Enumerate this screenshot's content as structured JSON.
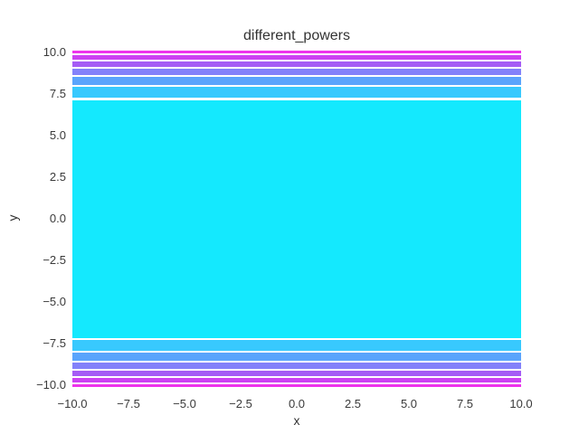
{
  "chart": {
    "title": "different_powers",
    "xlabel": "x",
    "ylabel": "y"
  },
  "colors": {
    "background": "#ffffff",
    "text": "#333333",
    "tick_text": "#3a3a3a"
  },
  "chart_data": {
    "type": "area",
    "title": "different_powers",
    "xlabel": "x",
    "ylabel": "y",
    "xlim": [
      -10.0,
      10.0
    ],
    "ylim": [
      -10.11,
      10.11
    ],
    "grid": false,
    "legend": false,
    "spines": false,
    "colormap": "cool",
    "description": "Horizontal color bands spanning the full x range [-10,10], symmetric about y=0; colors run from magenta at the outer edges through purple and blue to a large solid cyan block in the center.",
    "xticks": {
      "values": [
        -10.0,
        -7.5,
        -5.0,
        -2.5,
        0.0,
        2.5,
        5.0,
        7.5,
        10.0
      ],
      "labels": [
        "−10.0",
        "−7.5",
        "−5.0",
        "−2.5",
        "0.0",
        "2.5",
        "5.0",
        "7.5",
        "10.0"
      ]
    },
    "yticks": {
      "values": [
        10.0,
        7.5,
        5.0,
        2.5,
        0.0,
        -2.5,
        -5.0,
        -7.5,
        -10.0
      ],
      "labels": [
        "10.0",
        "7.5",
        "5.0",
        "2.5",
        "0.0",
        "−2.5",
        "−5.0",
        "−7.5",
        "−10.0"
      ]
    },
    "bands": [
      {
        "y_from": 9.95,
        "y_to": 10.11,
        "color": "#ee33ec"
      },
      {
        "y_from": 9.57,
        "y_to": 9.84,
        "color": "#cc41f2"
      },
      {
        "y_from": 9.13,
        "y_to": 9.46,
        "color": "#a55cf5"
      },
      {
        "y_from": 8.64,
        "y_to": 9.02,
        "color": "#8381fa"
      },
      {
        "y_from": 8.04,
        "y_to": 8.53,
        "color": "#5aa4fc"
      },
      {
        "y_from": 7.28,
        "y_to": 7.94,
        "color": "#38c9fe"
      },
      {
        "y_from": -7.17,
        "y_to": 7.12,
        "color": "#14e9fe"
      },
      {
        "y_from": -7.94,
        "y_to": -7.28,
        "color": "#38c9fe"
      },
      {
        "y_from": -8.53,
        "y_to": -8.04,
        "color": "#5aa4fc"
      },
      {
        "y_from": -9.02,
        "y_to": -8.64,
        "color": "#8381fa"
      },
      {
        "y_from": -9.46,
        "y_to": -9.13,
        "color": "#a55cf5"
      },
      {
        "y_from": -9.84,
        "y_to": -9.57,
        "color": "#cc41f2"
      },
      {
        "y_from": -10.11,
        "y_to": -9.95,
        "color": "#ee33ec"
      }
    ]
  }
}
